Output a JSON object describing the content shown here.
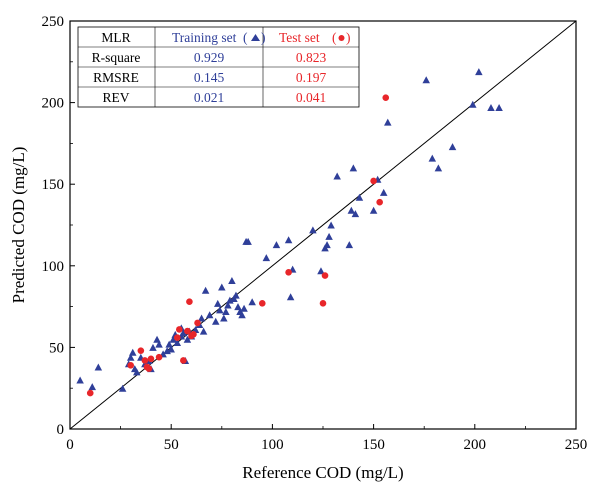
{
  "chart_data": {
    "type": "scatter",
    "xlabel": "Reference COD (mg/L)",
    "ylabel": "Predicted COD (mg/L)",
    "xlim": [
      0,
      250
    ],
    "ylim": [
      0,
      250
    ],
    "x_ticks": [
      "0",
      "50",
      "100",
      "150",
      "200",
      "250"
    ],
    "y_ticks": [
      "0",
      "50",
      "100",
      "150",
      "200",
      "250"
    ],
    "grid": false,
    "reference_line": "y = x",
    "series": [
      {
        "name": "Training set",
        "marker": "triangle",
        "color": "#2f3f99",
        "points": [
          [
            5,
            30
          ],
          [
            11,
            26
          ],
          [
            14,
            38
          ],
          [
            26,
            25
          ],
          [
            29,
            40
          ],
          [
            30,
            44
          ],
          [
            31,
            47
          ],
          [
            32,
            37
          ],
          [
            33,
            35
          ],
          [
            35,
            44
          ],
          [
            37,
            40
          ],
          [
            39,
            42
          ],
          [
            40,
            37
          ],
          [
            41,
            50
          ],
          [
            43,
            55
          ],
          [
            44,
            52
          ],
          [
            46,
            46
          ],
          [
            48,
            48
          ],
          [
            49,
            52
          ],
          [
            50,
            49
          ],
          [
            51,
            55
          ],
          [
            52,
            58
          ],
          [
            53,
            53
          ],
          [
            55,
            57
          ],
          [
            55,
            62
          ],
          [
            56,
            59
          ],
          [
            57,
            42
          ],
          [
            58,
            55
          ],
          [
            59,
            60
          ],
          [
            60,
            57
          ],
          [
            62,
            61
          ],
          [
            64,
            64
          ],
          [
            65,
            68
          ],
          [
            66,
            60
          ],
          [
            67,
            85
          ],
          [
            69,
            70
          ],
          [
            72,
            66
          ],
          [
            73,
            77
          ],
          [
            74,
            73
          ],
          [
            75,
            87
          ],
          [
            76,
            68
          ],
          [
            77,
            72
          ],
          [
            78,
            76
          ],
          [
            79,
            79
          ],
          [
            80,
            91
          ],
          [
            81,
            80
          ],
          [
            82,
            82
          ],
          [
            83,
            75
          ],
          [
            84,
            72
          ],
          [
            85,
            70
          ],
          [
            86,
            74
          ],
          [
            87,
            115
          ],
          [
            88,
            115
          ],
          [
            90,
            78
          ],
          [
            97,
            105
          ],
          [
            102,
            113
          ],
          [
            108,
            116
          ],
          [
            109,
            81
          ],
          [
            110,
            98
          ],
          [
            120,
            122
          ],
          [
            124,
            97
          ],
          [
            126,
            111
          ],
          [
            127,
            113
          ],
          [
            128,
            118
          ],
          [
            129,
            125
          ],
          [
            132,
            155
          ],
          [
            138,
            113
          ],
          [
            139,
            134
          ],
          [
            140,
            160
          ],
          [
            141,
            132
          ],
          [
            143,
            142
          ],
          [
            150,
            134
          ],
          [
            152,
            153
          ],
          [
            155,
            145
          ],
          [
            157,
            188
          ],
          [
            176,
            214
          ],
          [
            179,
            166
          ],
          [
            182,
            160
          ],
          [
            189,
            173
          ],
          [
            199,
            199
          ],
          [
            202,
            219
          ],
          [
            208,
            197
          ],
          [
            212,
            197
          ]
        ]
      },
      {
        "name": "Test set",
        "marker": "circle",
        "color": "#e8262a",
        "points": [
          [
            10,
            22
          ],
          [
            30,
            39
          ],
          [
            35,
            48
          ],
          [
            37,
            42
          ],
          [
            38,
            38
          ],
          [
            39,
            37
          ],
          [
            40,
            43
          ],
          [
            44,
            44
          ],
          [
            53,
            56
          ],
          [
            54,
            61
          ],
          [
            56,
            42
          ],
          [
            58,
            60
          ],
          [
            59,
            78
          ],
          [
            60,
            57
          ],
          [
            61,
            58
          ],
          [
            63,
            65
          ],
          [
            95,
            77
          ],
          [
            108,
            96
          ],
          [
            125,
            77
          ],
          [
            126,
            94
          ],
          [
            150,
            152
          ],
          [
            153,
            139
          ],
          [
            156,
            203
          ]
        ]
      }
    ]
  },
  "stats_table": {
    "header": {
      "model": "MLR",
      "training_label": "Training set",
      "test_label": "Test set"
    },
    "rows": [
      {
        "metric": "R-square",
        "training": "0.929",
        "test": "0.823"
      },
      {
        "metric": "RMSRE",
        "training": "0.145",
        "test": "0.197"
      },
      {
        "metric": "REV",
        "training": "0.021",
        "test": "0.041"
      }
    ]
  },
  "colors": {
    "training": "#2f3f99",
    "test": "#e8262a",
    "axis": "#000000"
  }
}
